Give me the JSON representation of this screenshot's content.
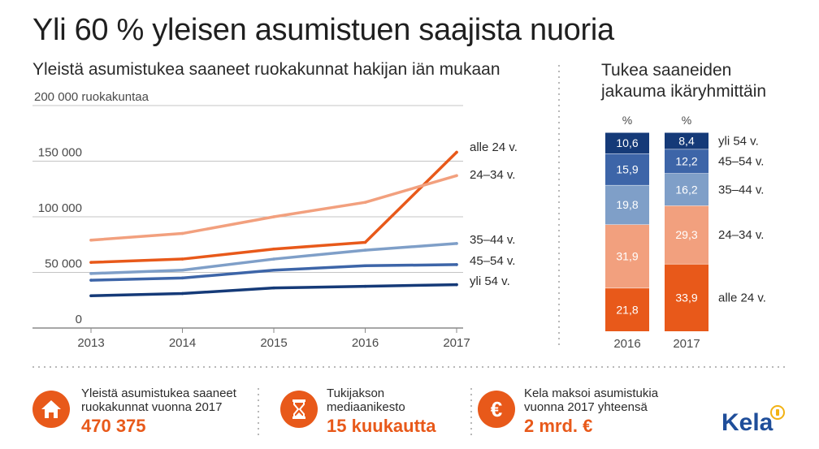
{
  "title": "Yli 60 % yleisen asumistuen saajista nuoria",
  "subtitle": "Yleistä asumistukea saaneet ruokakunnat hakijan iän mukaan",
  "right_title_line1": "Tukea saaneiden",
  "right_title_line2": "jakauma ikäryhmittäin",
  "chart_data": [
    {
      "type": "line",
      "title": "Yleistä asumistukea saaneet ruokakunnat hakijan iän mukaan",
      "ylabel": "ruokakuntaa",
      "x": [
        "2013",
        "2014",
        "2015",
        "2016",
        "2017"
      ],
      "y_ticks": [
        "0",
        "50 000",
        "100 000",
        "150 000",
        "200 000 ruokakuntaa"
      ],
      "ylim": [
        0,
        200000
      ],
      "grid": true,
      "series": [
        {
          "name": "alle 24 v.",
          "color": "#e8591a",
          "values": [
            59000,
            62000,
            71000,
            77000,
            158000
          ]
        },
        {
          "name": "24–34 v.",
          "color": "#f2a07e",
          "values": [
            79000,
            85000,
            100000,
            113000,
            137000
          ]
        },
        {
          "name": "35–44 v.",
          "color": "#7f9fc8",
          "values": [
            49000,
            52000,
            62000,
            70000,
            76000
          ]
        },
        {
          "name": "45–54 v.",
          "color": "#3d65a8",
          "values": [
            43000,
            45000,
            52000,
            56000,
            57000
          ]
        },
        {
          "name": "yli 54 v.",
          "color": "#153a78",
          "values": [
            29000,
            31000,
            36000,
            37500,
            39000
          ]
        }
      ]
    },
    {
      "type": "bar",
      "stacked": true,
      "title": "Tukea saaneiden jakauma ikäryhmittäin",
      "unit": "%",
      "categories": [
        "2016",
        "2017"
      ],
      "series": [
        {
          "name": "alle 24 v.",
          "color": "#e8591a",
          "values": [
            21.8,
            33.9
          ],
          "labels": [
            "21,8",
            "33,9"
          ]
        },
        {
          "name": "24–34 v.",
          "color": "#f2a07e",
          "values": [
            31.9,
            29.3
          ],
          "labels": [
            "31,9",
            "29,3"
          ]
        },
        {
          "name": "35–44 v.",
          "color": "#7f9fc8",
          "values": [
            19.8,
            16.2
          ],
          "labels": [
            "19,8",
            "16,2"
          ]
        },
        {
          "name": "45–54 v.",
          "color": "#3d65a8",
          "values": [
            15.9,
            12.2
          ],
          "labels": [
            "15,9",
            "12,2"
          ]
        },
        {
          "name": "yli 54 v.",
          "color": "#153a78",
          "values": [
            10.6,
            8.4
          ],
          "labels": [
            "10,6",
            "8,4"
          ]
        }
      ]
    }
  ],
  "facts": [
    {
      "icon": "house-icon",
      "label1": "Yleistä asumistukea saaneet",
      "label2": "ruokakunnat vuonna 2017",
      "value": "470 375"
    },
    {
      "icon": "hourglass-icon",
      "label1": "Tukijakson",
      "label2": "mediaanikesto",
      "value": "15 kuukautta"
    },
    {
      "icon": "euro-icon",
      "label1": "Kela maksoi asumistukia",
      "label2": "vuonna 2017 yhteensä",
      "value": "2 mrd. €"
    }
  ],
  "logo": "Kela",
  "colors": {
    "accent": "#e8591a",
    "brand": "#1f4e9a",
    "divider": "#b8b8b8"
  }
}
